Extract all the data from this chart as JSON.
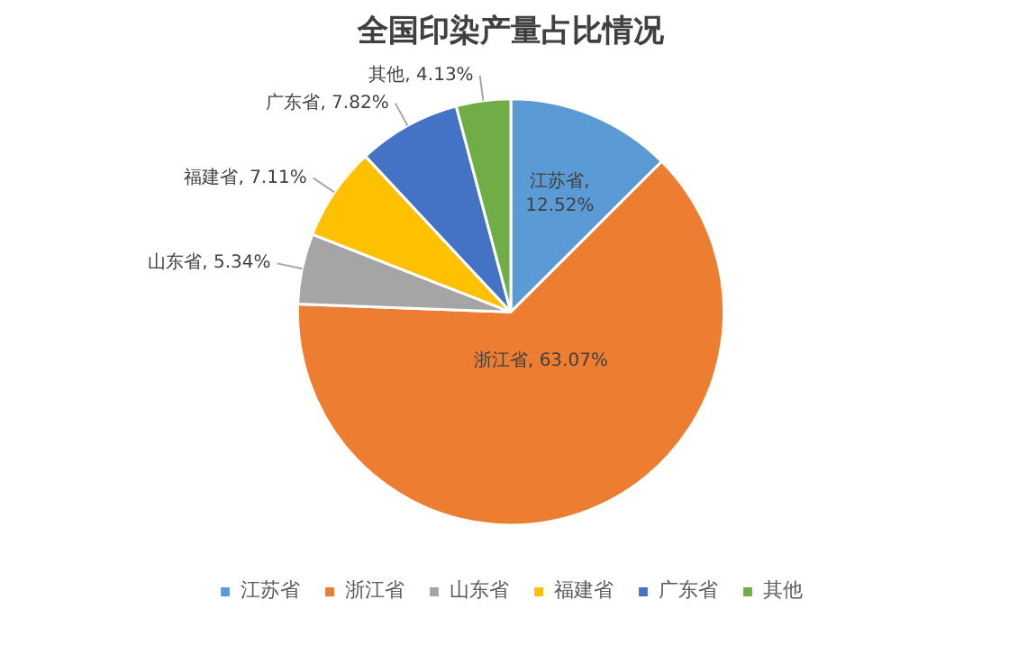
{
  "chart_data": {
    "type": "pie",
    "title": "全国印染产量占比情况",
    "categories": [
      "江苏省",
      "浙江省",
      "山东省",
      "福建省",
      "广东省",
      "其他"
    ],
    "values": [
      12.52,
      63.07,
      5.34,
      7.11,
      7.82,
      4.13
    ],
    "colors": [
      "#5b9bd5",
      "#ed7d31",
      "#a5a5a5",
      "#ffc000",
      "#4472c4",
      "#70ad47"
    ],
    "value_labels": [
      "江苏省,\n12.52%",
      "浙江省, 63.07%",
      "山东省, 5.34%",
      "福建省, 7.11%",
      "广东省, 7.82%",
      "其他, 4.13%"
    ],
    "legend": "bottom"
  }
}
